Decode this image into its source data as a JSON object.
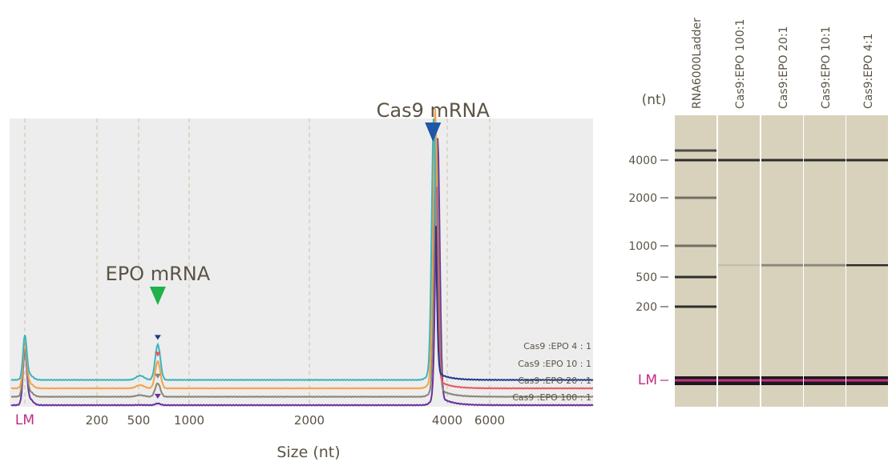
{
  "colors": {
    "plot_bg": "#ededed",
    "grid": "#c9c4a6",
    "text": "#5a5446",
    "lm": "#c12a83",
    "teal": "#3fb3bd",
    "orange": "#f2a24a",
    "red": "#e35a62",
    "gray": "#8b8575",
    "purple": "#6a2ea0",
    "navy": "#1e3a8a",
    "blue_marker": "#1f56a6",
    "green_marker": "#1fb24a",
    "gel_bg": "#d8d2bc",
    "gel_band": "#1e1e1e",
    "lm_band": "#c62f86"
  },
  "chart_data": [
    {
      "type": "line",
      "title": "",
      "xlabel": "Size (nt)",
      "ylabel": "",
      "x_scale": "log",
      "x_tick_labels": [
        "LM",
        "200",
        "500",
        "1000",
        "2000",
        "4000",
        "6000"
      ],
      "x_ticks": [
        25,
        200,
        500,
        1000,
        2000,
        4000,
        6000
      ],
      "xlim": [
        20,
        10000
      ],
      "grid": true,
      "peak_positions_nt": {
        "LM": 25,
        "EPO": 650,
        "Cas9": 3800
      },
      "annotations": [
        {
          "text": "EPO mRNA",
          "x": 650
        },
        {
          "text": "Cas9 mRNA",
          "x": 3800
        }
      ],
      "series": [
        {
          "name": "Cas9 :EPO    4 : 1",
          "color": "#3fb3bd",
          "tail_color": "#1e3a8a",
          "baseline": 0.3,
          "lm_peak": 0.78,
          "epo_peak": 0.42,
          "cas9_peak": 3.0
        },
        {
          "name": "Cas9 :EPO   10 : 1",
          "color": "#f2a24a",
          "tail_color": "#e35a62",
          "baseline": 0.2,
          "lm_peak": 0.7,
          "epo_peak": 0.32,
          "cas9_peak": 3.2
        },
        {
          "name": "Cas9 :EPO   20 : 1",
          "color": "#8b8575",
          "tail_color": "#8b8575",
          "baseline": 0.1,
          "lm_peak": 0.62,
          "epo_peak": 0.16,
          "cas9_peak": 3.0
        },
        {
          "name": "Cas9 :EPO  100 : 1",
          "color": "#6a2ea0",
          "tail_color": "#6a2ea0",
          "baseline": 0.0,
          "lm_peak": 0.6,
          "epo_peak": 0.02,
          "cas9_peak": 3.05
        }
      ]
    },
    {
      "type": "gel",
      "y_axis_label": "(nt)",
      "y_tick_labels": [
        "4000",
        "2000",
        "1000",
        "500",
        "200",
        "LM"
      ],
      "y_ticks": [
        4000,
        2000,
        1000,
        500,
        200,
        25
      ],
      "lanes": [
        {
          "name": "RNA6000Ladder",
          "bands": [
            6000,
            4000,
            2000,
            1000,
            500,
            200,
            25
          ]
        },
        {
          "name": "Cas9:EPO  100:1",
          "bands": [
            4000,
            25
          ],
          "faint_bands": [
            650
          ]
        },
        {
          "name": "Cas9:EPO  20:1",
          "bands": [
            4000,
            25
          ],
          "medium_bands": [
            650
          ]
        },
        {
          "name": "Cas9:EPO  10:1",
          "bands": [
            4000,
            25
          ],
          "medium_bands": [
            650
          ]
        },
        {
          "name": "Cas9:EPO  4:1",
          "bands": [
            4000,
            650,
            25
          ]
        }
      ]
    }
  ]
}
